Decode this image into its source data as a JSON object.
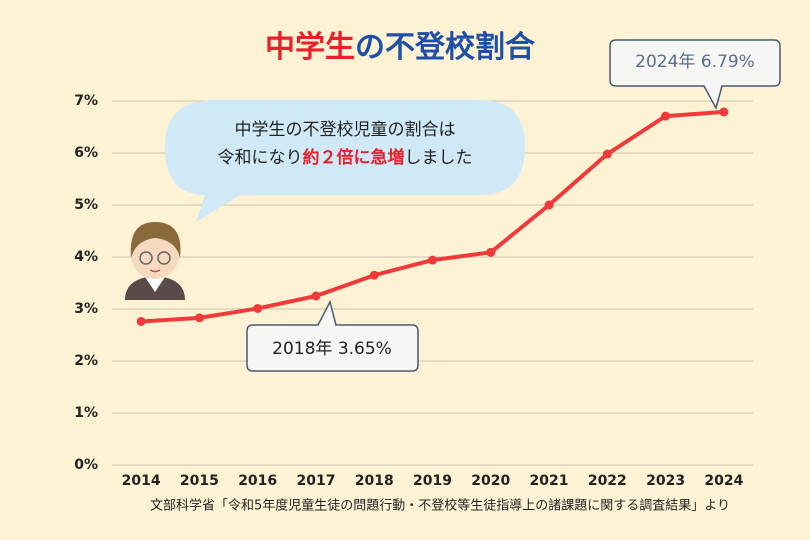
{
  "chart_data": {
    "type": "line",
    "title": [
      "中学生",
      "の不登校割合"
    ],
    "categories": [
      "2014",
      "2015",
      "2016",
      "2017",
      "2018",
      "2019",
      "2020",
      "2021",
      "2022",
      "2023",
      "2024"
    ],
    "values": [
      2.76,
      2.83,
      3.01,
      3.25,
      3.65,
      3.94,
      4.09,
      5.0,
      5.98,
      6.71,
      6.79
    ],
    "color": "#f03a3a",
    "ylim": [
      0,
      7
    ],
    "yticks": [
      {
        "value": 0,
        "label": "0%"
      },
      {
        "value": 1,
        "label": "1%"
      },
      {
        "value": 2,
        "label": "2%"
      },
      {
        "value": 3,
        "label": "3%"
      },
      {
        "value": 4,
        "label": "4%"
      },
      {
        "value": 5,
        "label": "5%"
      },
      {
        "value": 6,
        "label": "6%"
      },
      {
        "value": 7,
        "label": "7%"
      }
    ],
    "grid": true,
    "annotations": [
      "2024年 6.79%",
      "2018年 3.65%"
    ],
    "speech_bubble": {
      "line1": "中学生の不登校児童の割合は",
      "line2": [
        "令和になり",
        "約２倍に急増",
        "しました"
      ]
    },
    "source": "文部科学省「令和5年度児童生徒の問題行動・不登校等生徒指導上の諸課題に関する調査結果」より"
  }
}
